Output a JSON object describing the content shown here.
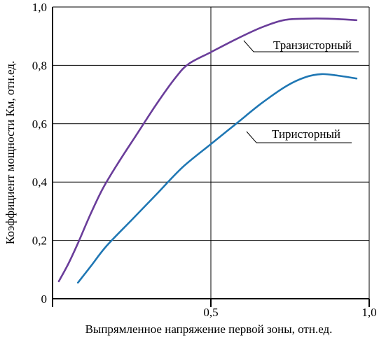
{
  "chart_data": {
    "type": "line",
    "title": "",
    "xlabel": "Выпрямленное напряжение первой зоны, отн.ед.",
    "ylabel": "Коэффициент мощности Км, отн.ед.",
    "xlim": [
      0,
      1.0
    ],
    "ylim": [
      0,
      1.0
    ],
    "x_ticks": [
      0.5,
      1.0
    ],
    "x_tick_labels": [
      "0,5",
      "1,0"
    ],
    "y_ticks": [
      0,
      0.2,
      0.4,
      0.6,
      0.8,
      1.0
    ],
    "y_tick_labels": [
      "0",
      "0,2",
      "0,4",
      "0,6",
      "0,8",
      "1,0"
    ],
    "grid": "horizontal lines at each y tick, vertical line at x=0.5",
    "legend": "labels placed next to curves with leader lines",
    "series": [
      {
        "name": "Транзисторный",
        "color": "#6a3d9a",
        "x": [
          0.02,
          0.05,
          0.08,
          0.12,
          0.16,
          0.21,
          0.27,
          0.33,
          0.39,
          0.43,
          0.5,
          0.58,
          0.66,
          0.73,
          0.8,
          0.87,
          0.96
        ],
        "y": [
          0.06,
          0.12,
          0.19,
          0.29,
          0.38,
          0.47,
          0.57,
          0.67,
          0.76,
          0.805,
          0.845,
          0.89,
          0.93,
          0.955,
          0.96,
          0.96,
          0.955
        ]
      },
      {
        "name": "Тиристорный",
        "color": "#1f77b4",
        "x": [
          0.08,
          0.12,
          0.17,
          0.25,
          0.33,
          0.41,
          0.5,
          0.58,
          0.66,
          0.74,
          0.8,
          0.85,
          0.9,
          0.96
        ],
        "y": [
          0.055,
          0.11,
          0.18,
          0.27,
          0.36,
          0.45,
          0.53,
          0.6,
          0.67,
          0.73,
          0.76,
          0.77,
          0.765,
          0.755
        ]
      }
    ],
    "annotations": [
      {
        "text": "Транзисторный",
        "series": 0
      },
      {
        "text": "Тиристорный",
        "series": 1
      }
    ]
  }
}
